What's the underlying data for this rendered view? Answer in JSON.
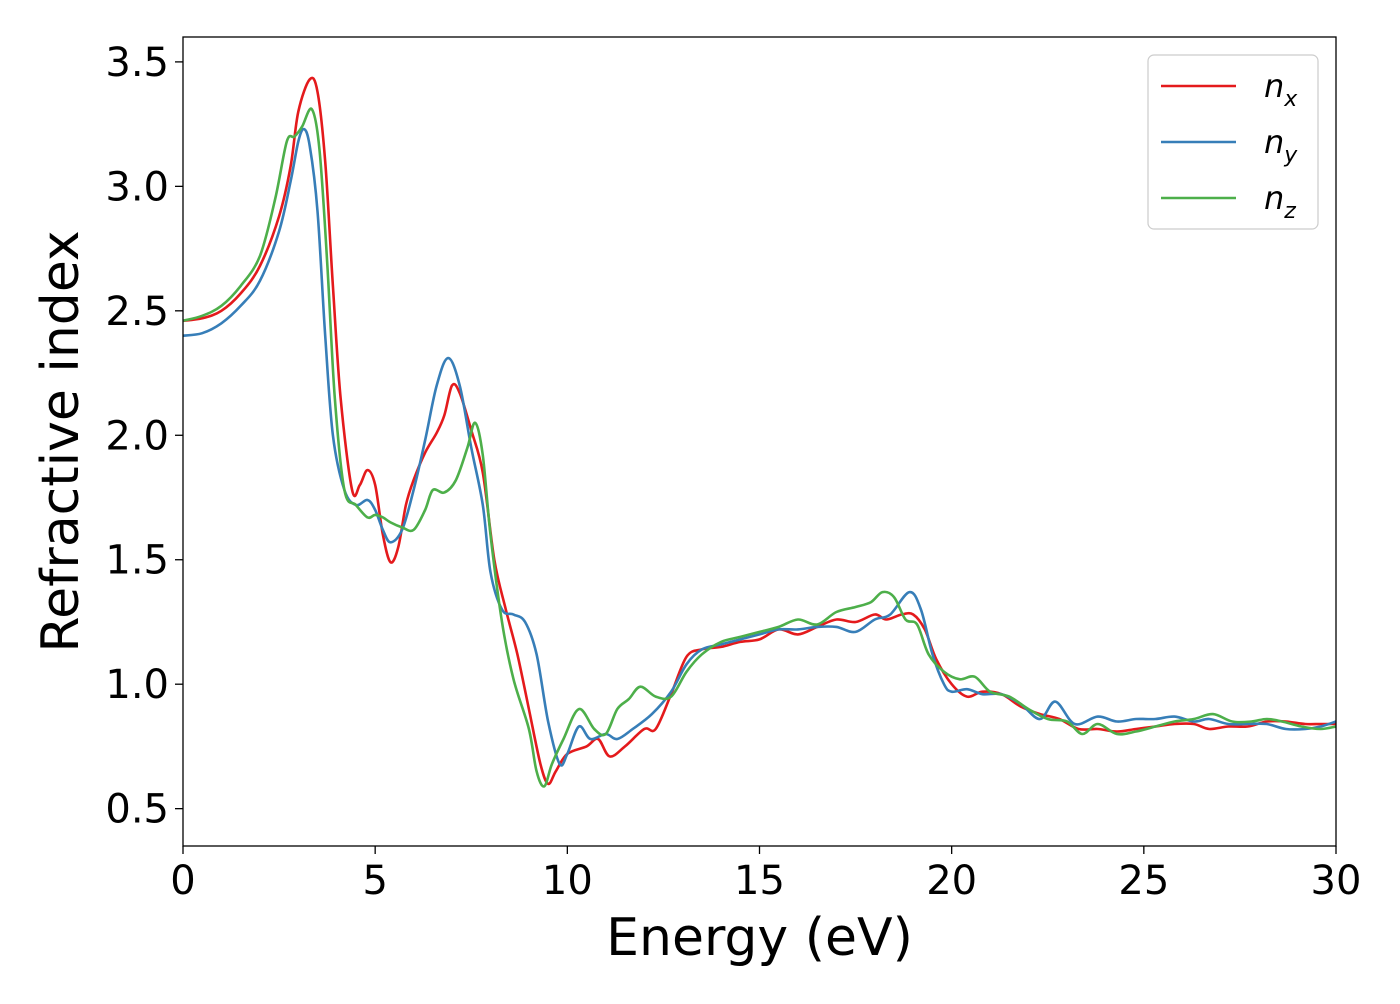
{
  "chart_data": {
    "type": "line",
    "xlabel": "Energy (eV)",
    "ylabel": "Refractive index",
    "xlim": [
      0,
      30
    ],
    "ylim": [
      0.35,
      3.6
    ],
    "xticks": [
      0,
      5,
      10,
      15,
      20,
      25,
      30
    ],
    "yticks": [
      0.5,
      1.0,
      1.5,
      2.0,
      2.5,
      3.0,
      3.5
    ],
    "xtick_labels": [
      "0",
      "5",
      "10",
      "15",
      "20",
      "25",
      "30"
    ],
    "ytick_labels": [
      "0.5",
      "1.0",
      "1.5",
      "2.0",
      "2.5",
      "3.0",
      "3.5"
    ],
    "grid": false,
    "legend_position": "top-right",
    "series": [
      {
        "name": "n_x",
        "base": "n",
        "sub": "x",
        "color": "#e41a1c",
        "points": [
          [
            0,
            2.46
          ],
          [
            0.5,
            2.47
          ],
          [
            1,
            2.5
          ],
          [
            1.5,
            2.57
          ],
          [
            2,
            2.68
          ],
          [
            2.5,
            2.88
          ],
          [
            2.8,
            3.08
          ],
          [
            3.0,
            3.3
          ],
          [
            3.3,
            3.43
          ],
          [
            3.5,
            3.38
          ],
          [
            3.7,
            3.1
          ],
          [
            3.9,
            2.6
          ],
          [
            4.1,
            2.15
          ],
          [
            4.4,
            1.78
          ],
          [
            4.6,
            1.8
          ],
          [
            4.8,
            1.86
          ],
          [
            5.0,
            1.8
          ],
          [
            5.2,
            1.6
          ],
          [
            5.4,
            1.49
          ],
          [
            5.6,
            1.55
          ],
          [
            5.8,
            1.72
          ],
          [
            6.0,
            1.82
          ],
          [
            6.3,
            1.93
          ],
          [
            6.6,
            2.01
          ],
          [
            6.8,
            2.08
          ],
          [
            7.0,
            2.2
          ],
          [
            7.2,
            2.17
          ],
          [
            7.5,
            2.02
          ],
          [
            7.8,
            1.85
          ],
          [
            8.1,
            1.5
          ],
          [
            8.4,
            1.3
          ],
          [
            8.7,
            1.12
          ],
          [
            9.0,
            0.9
          ],
          [
            9.3,
            0.68
          ],
          [
            9.5,
            0.6
          ],
          [
            9.7,
            0.65
          ],
          [
            10.0,
            0.72
          ],
          [
            10.5,
            0.75
          ],
          [
            10.8,
            0.78
          ],
          [
            11.1,
            0.71
          ],
          [
            11.5,
            0.75
          ],
          [
            12.0,
            0.82
          ],
          [
            12.3,
            0.82
          ],
          [
            12.7,
            0.96
          ],
          [
            13.1,
            1.11
          ],
          [
            13.5,
            1.14
          ],
          [
            14.0,
            1.15
          ],
          [
            14.5,
            1.17
          ],
          [
            15.0,
            1.18
          ],
          [
            15.5,
            1.22
          ],
          [
            16.0,
            1.2
          ],
          [
            16.5,
            1.23
          ],
          [
            17.0,
            1.26
          ],
          [
            17.5,
            1.25
          ],
          [
            18.0,
            1.28
          ],
          [
            18.3,
            1.26
          ],
          [
            18.7,
            1.28
          ],
          [
            19.0,
            1.28
          ],
          [
            19.3,
            1.22
          ],
          [
            19.6,
            1.1
          ],
          [
            20.0,
            1.0
          ],
          [
            20.4,
            0.95
          ],
          [
            20.8,
            0.97
          ],
          [
            21.3,
            0.96
          ],
          [
            21.8,
            0.91
          ],
          [
            22.3,
            0.88
          ],
          [
            22.8,
            0.86
          ],
          [
            23.3,
            0.82
          ],
          [
            23.8,
            0.82
          ],
          [
            24.3,
            0.81
          ],
          [
            24.8,
            0.82
          ],
          [
            25.3,
            0.83
          ],
          [
            25.8,
            0.84
          ],
          [
            26.3,
            0.84
          ],
          [
            26.7,
            0.82
          ],
          [
            27.2,
            0.83
          ],
          [
            27.7,
            0.83
          ],
          [
            28.2,
            0.85
          ],
          [
            28.7,
            0.85
          ],
          [
            29.2,
            0.84
          ],
          [
            29.6,
            0.84
          ],
          [
            30.0,
            0.84
          ]
        ]
      },
      {
        "name": "n_y",
        "base": "n",
        "sub": "y",
        "color": "#377eb8",
        "points": [
          [
            0,
            2.4
          ],
          [
            0.5,
            2.41
          ],
          [
            1,
            2.45
          ],
          [
            1.5,
            2.52
          ],
          [
            2,
            2.62
          ],
          [
            2.5,
            2.82
          ],
          [
            2.8,
            3.02
          ],
          [
            3.0,
            3.18
          ],
          [
            3.15,
            3.23
          ],
          [
            3.3,
            3.16
          ],
          [
            3.5,
            2.9
          ],
          [
            3.7,
            2.4
          ],
          [
            3.9,
            2.0
          ],
          [
            4.2,
            1.78
          ],
          [
            4.5,
            1.72
          ],
          [
            4.8,
            1.74
          ],
          [
            5.0,
            1.7
          ],
          [
            5.2,
            1.62
          ],
          [
            5.4,
            1.57
          ],
          [
            5.7,
            1.62
          ],
          [
            6.0,
            1.78
          ],
          [
            6.3,
            1.98
          ],
          [
            6.6,
            2.2
          ],
          [
            6.9,
            2.31
          ],
          [
            7.2,
            2.2
          ],
          [
            7.5,
            1.95
          ],
          [
            7.8,
            1.72
          ],
          [
            8.0,
            1.45
          ],
          [
            8.3,
            1.3
          ],
          [
            8.6,
            1.28
          ],
          [
            8.9,
            1.25
          ],
          [
            9.2,
            1.12
          ],
          [
            9.5,
            0.85
          ],
          [
            9.8,
            0.68
          ],
          [
            10.0,
            0.72
          ],
          [
            10.3,
            0.83
          ],
          [
            10.6,
            0.78
          ],
          [
            11.0,
            0.8
          ],
          [
            11.3,
            0.78
          ],
          [
            11.7,
            0.82
          ],
          [
            12.2,
            0.88
          ],
          [
            12.7,
            0.97
          ],
          [
            13.1,
            1.08
          ],
          [
            13.5,
            1.14
          ],
          [
            14.0,
            1.16
          ],
          [
            14.5,
            1.18
          ],
          [
            15.0,
            1.2
          ],
          [
            15.5,
            1.22
          ],
          [
            16.0,
            1.22
          ],
          [
            16.5,
            1.23
          ],
          [
            17.0,
            1.23
          ],
          [
            17.5,
            1.21
          ],
          [
            18.0,
            1.26
          ],
          [
            18.4,
            1.28
          ],
          [
            18.9,
            1.37
          ],
          [
            19.2,
            1.3
          ],
          [
            19.5,
            1.12
          ],
          [
            19.8,
            1.0
          ],
          [
            20.0,
            0.97
          ],
          [
            20.4,
            0.98
          ],
          [
            20.8,
            0.96
          ],
          [
            21.3,
            0.96
          ],
          [
            21.8,
            0.92
          ],
          [
            22.3,
            0.86
          ],
          [
            22.7,
            0.93
          ],
          [
            23.2,
            0.84
          ],
          [
            23.8,
            0.87
          ],
          [
            24.3,
            0.85
          ],
          [
            24.8,
            0.86
          ],
          [
            25.3,
            0.86
          ],
          [
            25.8,
            0.87
          ],
          [
            26.3,
            0.85
          ],
          [
            26.7,
            0.86
          ],
          [
            27.2,
            0.84
          ],
          [
            27.7,
            0.84
          ],
          [
            28.2,
            0.84
          ],
          [
            28.7,
            0.82
          ],
          [
            29.2,
            0.82
          ],
          [
            29.6,
            0.83
          ],
          [
            30.0,
            0.85
          ]
        ]
      },
      {
        "name": "n_z",
        "base": "n",
        "sub": "z",
        "color": "#4daf4a",
        "points": [
          [
            0,
            2.46
          ],
          [
            0.5,
            2.48
          ],
          [
            1,
            2.52
          ],
          [
            1.5,
            2.6
          ],
          [
            2,
            2.72
          ],
          [
            2.4,
            2.95
          ],
          [
            2.7,
            3.18
          ],
          [
            2.9,
            3.2
          ],
          [
            3.1,
            3.24
          ],
          [
            3.35,
            3.31
          ],
          [
            3.55,
            3.15
          ],
          [
            3.75,
            2.7
          ],
          [
            3.95,
            2.15
          ],
          [
            4.2,
            1.78
          ],
          [
            4.5,
            1.72
          ],
          [
            4.8,
            1.67
          ],
          [
            5.0,
            1.68
          ],
          [
            5.2,
            1.67
          ],
          [
            5.4,
            1.65
          ],
          [
            5.7,
            1.63
          ],
          [
            6.0,
            1.62
          ],
          [
            6.3,
            1.7
          ],
          [
            6.5,
            1.78
          ],
          [
            6.8,
            1.77
          ],
          [
            7.1,
            1.82
          ],
          [
            7.4,
            1.95
          ],
          [
            7.6,
            2.05
          ],
          [
            7.8,
            1.92
          ],
          [
            8.0,
            1.6
          ],
          [
            8.3,
            1.25
          ],
          [
            8.6,
            1.02
          ],
          [
            9.0,
            0.82
          ],
          [
            9.2,
            0.65
          ],
          [
            9.4,
            0.59
          ],
          [
            9.6,
            0.68
          ],
          [
            9.9,
            0.78
          ],
          [
            10.3,
            0.9
          ],
          [
            10.7,
            0.82
          ],
          [
            11.0,
            0.8
          ],
          [
            11.3,
            0.9
          ],
          [
            11.6,
            0.94
          ],
          [
            11.9,
            0.99
          ],
          [
            12.3,
            0.95
          ],
          [
            12.7,
            0.95
          ],
          [
            13.1,
            1.05
          ],
          [
            13.5,
            1.12
          ],
          [
            14.0,
            1.17
          ],
          [
            14.5,
            1.19
          ],
          [
            15.0,
            1.21
          ],
          [
            15.5,
            1.23
          ],
          [
            16.0,
            1.26
          ],
          [
            16.5,
            1.24
          ],
          [
            17.0,
            1.29
          ],
          [
            17.5,
            1.31
          ],
          [
            17.9,
            1.33
          ],
          [
            18.2,
            1.37
          ],
          [
            18.5,
            1.35
          ],
          [
            18.8,
            1.26
          ],
          [
            19.1,
            1.24
          ],
          [
            19.4,
            1.12
          ],
          [
            19.8,
            1.05
          ],
          [
            20.2,
            1.02
          ],
          [
            20.6,
            1.03
          ],
          [
            21.0,
            0.97
          ],
          [
            21.5,
            0.95
          ],
          [
            22.0,
            0.9
          ],
          [
            22.5,
            0.86
          ],
          [
            23.0,
            0.85
          ],
          [
            23.4,
            0.8
          ],
          [
            23.8,
            0.84
          ],
          [
            24.3,
            0.8
          ],
          [
            24.8,
            0.81
          ],
          [
            25.3,
            0.83
          ],
          [
            25.8,
            0.85
          ],
          [
            26.3,
            0.86
          ],
          [
            26.8,
            0.88
          ],
          [
            27.3,
            0.85
          ],
          [
            27.8,
            0.85
          ],
          [
            28.2,
            0.86
          ],
          [
            28.6,
            0.85
          ],
          [
            29.1,
            0.83
          ],
          [
            29.6,
            0.82
          ],
          [
            30.0,
            0.83
          ]
        ]
      }
    ]
  }
}
